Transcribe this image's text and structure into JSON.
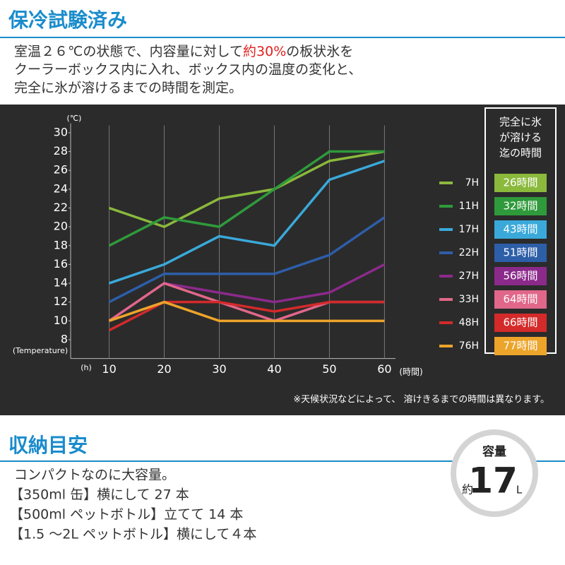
{
  "section1": {
    "title": "保冷試験済み",
    "description": {
      "before": "室温２６℃の状態で、内容量に対して",
      "highlight": "約30%",
      "after": "の板状氷を",
      "lines": [
        "クーラーボックス内に入れ、ボックス内の温度の変化と、",
        "完全に氷が溶けるまでの時間を測定。"
      ]
    }
  },
  "chart_data": {
    "type": "line",
    "y_unit": "(℃)",
    "y_label": "(Temperature)",
    "x_unit": "(h)",
    "x_label": "(時間)",
    "x": [
      10,
      20,
      30,
      40,
      50,
      60
    ],
    "xlim": [
      3,
      62
    ],
    "xticks": [
      10,
      20,
      30,
      40,
      50,
      60
    ],
    "ylim": [
      6,
      31
    ],
    "yticks": [
      8,
      10,
      12,
      14,
      16,
      18,
      20,
      22,
      24,
      26,
      28,
      30
    ],
    "grid": true,
    "legend_title": [
      "完全に氷",
      "が溶ける",
      "迄の時間"
    ],
    "series": [
      {
        "name": "7H",
        "badge": "26時間",
        "color": "#8bb93c",
        "values": [
          22,
          20,
          23,
          24,
          27,
          28
        ]
      },
      {
        "name": "11H",
        "badge": "32時間",
        "color": "#2f9a3b",
        "values": [
          18,
          21,
          20,
          24,
          28,
          28
        ]
      },
      {
        "name": "17H",
        "badge": "43時間",
        "color": "#3aa9da",
        "values": [
          14,
          16,
          19,
          18,
          25,
          27
        ]
      },
      {
        "name": "22H",
        "badge": "51時間",
        "color": "#2d5ea8",
        "values": [
          12,
          15,
          15,
          15,
          17,
          21
        ]
      },
      {
        "name": "27H",
        "badge": "56時間",
        "color": "#8b2a8b",
        "values": [
          10,
          14,
          13,
          12,
          13,
          16
        ]
      },
      {
        "name": "33H",
        "badge": "64時間",
        "color": "#e0678a",
        "values": [
          10,
          14,
          12,
          10,
          12,
          12
        ]
      },
      {
        "name": "48H",
        "badge": "66時間",
        "color": "#d42a2a",
        "values": [
          9,
          12,
          12,
          11,
          12,
          12
        ]
      },
      {
        "name": "76H",
        "badge": "77時間",
        "color": "#eca42a",
        "values": [
          10,
          12,
          10,
          10,
          10,
          10
        ]
      }
    ],
    "note": "※天候状況などによって、 溶けきるまでの時間は異なります。"
  },
  "section2": {
    "title": "収納目安",
    "lines": [
      "コンパクトなのに大容量。",
      "【350ml 缶】横にして 27 本",
      "【500ml ペットボトル】立てて 14 本",
      "【1.5 ～2L ペットボトル】横にして４本"
    ],
    "capacity": {
      "label": "容量",
      "prefix": "約",
      "value": 17,
      "unit": "L"
    }
  }
}
